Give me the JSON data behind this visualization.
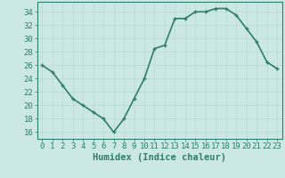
{
  "x": [
    0,
    1,
    2,
    3,
    4,
    5,
    6,
    7,
    8,
    9,
    10,
    11,
    12,
    13,
    14,
    15,
    16,
    17,
    18,
    19,
    20,
    21,
    22,
    23
  ],
  "y": [
    26,
    25,
    23,
    21,
    20,
    19,
    18,
    16,
    18,
    21,
    24,
    28.5,
    29,
    33,
    33,
    34,
    34,
    34.5,
    34.5,
    33.5,
    31.5,
    29.5,
    26.5,
    25.5
  ],
  "line_color": "#2e7d6e",
  "marker": "+",
  "bg_color": "#cce8e4",
  "grid_color": "#b8d8d4",
  "xlabel": "Humidex (Indice chaleur)",
  "xlim": [
    -0.5,
    23.5
  ],
  "ylim": [
    15,
    35.5
  ],
  "yticks": [
    16,
    18,
    20,
    22,
    24,
    26,
    28,
    30,
    32,
    34
  ],
  "xticks": [
    0,
    1,
    2,
    3,
    4,
    5,
    6,
    7,
    8,
    9,
    10,
    11,
    12,
    13,
    14,
    15,
    16,
    17,
    18,
    19,
    20,
    21,
    22,
    23
  ],
  "axis_color": "#2e7d6e",
  "tick_color": "#2e7d6e",
  "label_color": "#2e7d6e",
  "font_size_label": 7.5,
  "font_size_tick": 6.5,
  "line_width": 1.2,
  "markersize": 3.5,
  "markeredgewidth": 1.0
}
